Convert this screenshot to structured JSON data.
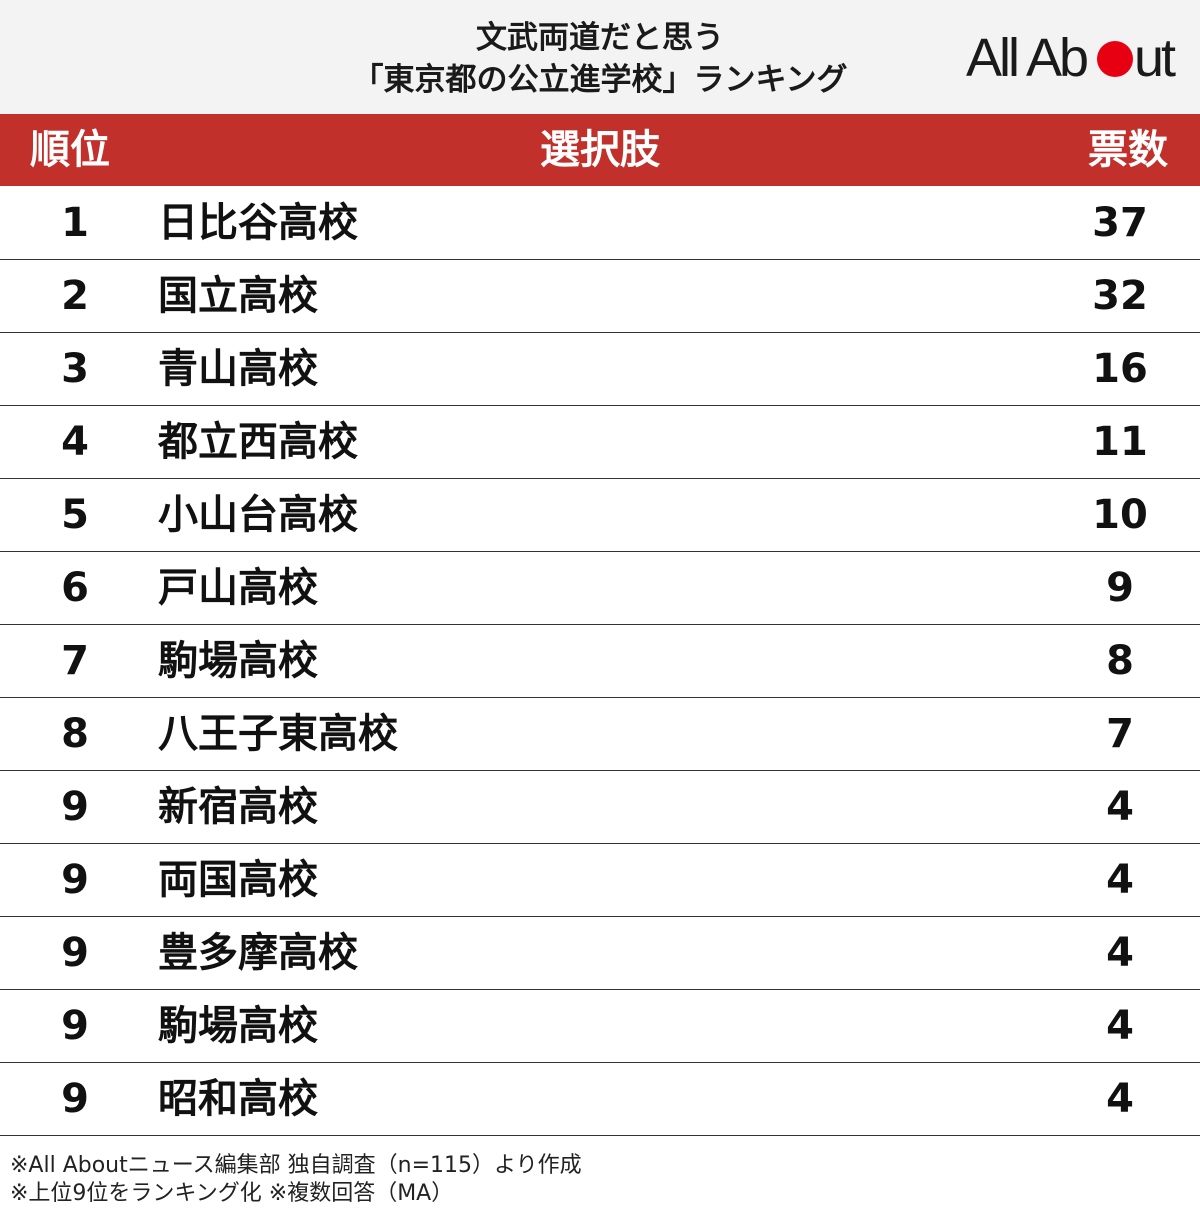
{
  "title": {
    "line1": "文武両道だと思う",
    "line2": "「東京都の公立進学校」ランキング"
  },
  "logo": {
    "text_left": "All Ab",
    "text_right": "ut",
    "dot_color": "#e60012"
  },
  "colors": {
    "header_bg": "#c1302b",
    "title_bg": "#f3f3f3"
  },
  "header": {
    "rank": "順位",
    "choice": "選択肢",
    "votes": "票数"
  },
  "rows": [
    {
      "rank": "1",
      "name": "日比谷高校",
      "votes": "37"
    },
    {
      "rank": "2",
      "name": "国立高校",
      "votes": "32"
    },
    {
      "rank": "3",
      "name": "青山高校",
      "votes": "16"
    },
    {
      "rank": "4",
      "name": "都立西高校",
      "votes": "11"
    },
    {
      "rank": "5",
      "name": "小山台高校",
      "votes": "10"
    },
    {
      "rank": "6",
      "name": "戸山高校",
      "votes": "9"
    },
    {
      "rank": "7",
      "name": "駒場高校",
      "votes": "8"
    },
    {
      "rank": "8",
      "name": "八王子東高校",
      "votes": "7"
    },
    {
      "rank": "9",
      "name": "新宿高校",
      "votes": "4"
    },
    {
      "rank": "9",
      "name": "両国高校",
      "votes": "4"
    },
    {
      "rank": "9",
      "name": "豊多摩高校",
      "votes": "4"
    },
    {
      "rank": "9",
      "name": "駒場高校",
      "votes": "4"
    },
    {
      "rank": "9",
      "name": "昭和高校",
      "votes": "4"
    }
  ],
  "footer": {
    "note1": "※All Aboutニュース編集部 独自調査（n=115）より作成",
    "note2": "※上位9位をランキング化 ※複数回答（MA）"
  }
}
